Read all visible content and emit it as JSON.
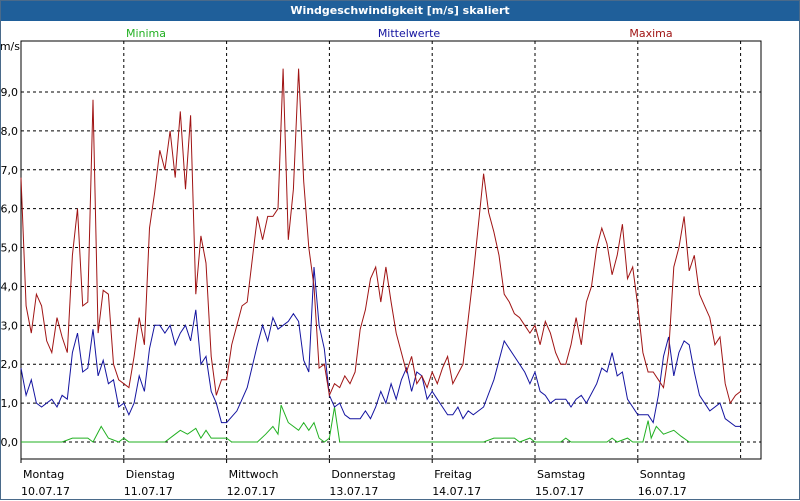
{
  "window": {
    "title": "Windgeschwindigkeit [m/s] skaliert"
  },
  "chart_data": {
    "type": "line",
    "title": "Windgeschwindigkeit [m/s] skaliert",
    "ylabel": "m/s",
    "ylim": [
      0,
      10
    ],
    "yticks": [
      "0,0",
      "1,0",
      "2,0",
      "3,0",
      "4,0",
      "5,0",
      "6,0",
      "7,0",
      "8,0",
      "9,0"
    ],
    "xlim": [
      0,
      7.2
    ],
    "days": [
      {
        "weekday": "Montag",
        "date": "10.07.17"
      },
      {
        "weekday": "Dienstag",
        "date": "11.07.17"
      },
      {
        "weekday": "Mittwoch",
        "date": "12.07.17"
      },
      {
        "weekday": "Donnerstag",
        "date": "13.07.17"
      },
      {
        "weekday": "Freitag",
        "date": "14.07.17"
      },
      {
        "weekday": "Samstag",
        "date": "15.07.17"
      },
      {
        "weekday": "Sonntag",
        "date": "16.07.17"
      }
    ],
    "series": [
      {
        "name": "Minima",
        "color": "#22b022",
        "points": [
          [
            0,
            0
          ],
          [
            0.4,
            0
          ],
          [
            0.5,
            0.1
          ],
          [
            0.65,
            0.1
          ],
          [
            0.7,
            0
          ],
          [
            0.78,
            0.4
          ],
          [
            0.85,
            0.1
          ],
          [
            0.95,
            0
          ],
          [
            1.0,
            0.1
          ],
          [
            1.05,
            0
          ],
          [
            1.4,
            0
          ],
          [
            1.5,
            0.2
          ],
          [
            1.55,
            0.3
          ],
          [
            1.62,
            0.2
          ],
          [
            1.7,
            0.35
          ],
          [
            1.75,
            0.1
          ],
          [
            1.8,
            0.3
          ],
          [
            1.85,
            0.1
          ],
          [
            2.0,
            0.1
          ],
          [
            2.05,
            0
          ],
          [
            2.3,
            0
          ],
          [
            2.38,
            0.2
          ],
          [
            2.45,
            0.4
          ],
          [
            2.5,
            0.2
          ],
          [
            2.53,
            0.95
          ],
          [
            2.6,
            0.5
          ],
          [
            2.7,
            0.3
          ],
          [
            2.75,
            0.5
          ],
          [
            2.8,
            0.3
          ],
          [
            2.85,
            0.5
          ],
          [
            2.9,
            0.1
          ],
          [
            2.95,
            0
          ],
          [
            3.0,
            0.1
          ],
          [
            3.05,
            0.9
          ],
          [
            3.1,
            0
          ],
          [
            4.5,
            0
          ],
          [
            4.6,
            0.1
          ],
          [
            4.8,
            0.1
          ],
          [
            4.85,
            0
          ],
          [
            4.95,
            0.1
          ],
          [
            5.0,
            0
          ],
          [
            5.25,
            0
          ],
          [
            5.3,
            0.1
          ],
          [
            5.35,
            0
          ],
          [
            5.7,
            0
          ],
          [
            5.75,
            0.1
          ],
          [
            5.8,
            0
          ],
          [
            5.9,
            0.1
          ],
          [
            5.95,
            0
          ],
          [
            6.05,
            0
          ],
          [
            6.1,
            0.55
          ],
          [
            6.13,
            0.1
          ],
          [
            6.18,
            0.4
          ],
          [
            6.25,
            0.2
          ],
          [
            6.35,
            0.3
          ],
          [
            6.42,
            0.15
          ],
          [
            6.5,
            0
          ],
          [
            7.0,
            0
          ]
        ]
      },
      {
        "name": "Mittelwerte",
        "color": "#1414a0",
        "points": [
          [
            0,
            1.9
          ],
          [
            0.05,
            1.2
          ],
          [
            0.1,
            1.6
          ],
          [
            0.15,
            1.0
          ],
          [
            0.2,
            0.9
          ],
          [
            0.3,
            1.1
          ],
          [
            0.35,
            0.9
          ],
          [
            0.4,
            1.2
          ],
          [
            0.45,
            1.1
          ],
          [
            0.5,
            2.3
          ],
          [
            0.55,
            2.8
          ],
          [
            0.6,
            1.8
          ],
          [
            0.65,
            1.9
          ],
          [
            0.7,
            2.9
          ],
          [
            0.75,
            1.7
          ],
          [
            0.8,
            2.1
          ],
          [
            0.85,
            1.5
          ],
          [
            0.9,
            1.6
          ],
          [
            0.95,
            0.9
          ],
          [
            1.0,
            1.0
          ],
          [
            1.05,
            0.7
          ],
          [
            1.1,
            1.0
          ],
          [
            1.15,
            1.7
          ],
          [
            1.2,
            1.3
          ],
          [
            1.25,
            2.4
          ],
          [
            1.3,
            3.0
          ],
          [
            1.35,
            3.0
          ],
          [
            1.4,
            2.8
          ],
          [
            1.45,
            3.0
          ],
          [
            1.5,
            2.5
          ],
          [
            1.55,
            2.8
          ],
          [
            1.6,
            3.0
          ],
          [
            1.65,
            2.6
          ],
          [
            1.7,
            3.4
          ],
          [
            1.75,
            2.0
          ],
          [
            1.8,
            2.2
          ],
          [
            1.85,
            1.3
          ],
          [
            1.9,
            1.0
          ],
          [
            1.95,
            0.5
          ],
          [
            2.0,
            0.5
          ],
          [
            2.1,
            0.8
          ],
          [
            2.2,
            1.4
          ],
          [
            2.3,
            2.5
          ],
          [
            2.35,
            3.0
          ],
          [
            2.4,
            2.6
          ],
          [
            2.45,
            3.2
          ],
          [
            2.5,
            2.9
          ],
          [
            2.55,
            3.0
          ],
          [
            2.6,
            3.1
          ],
          [
            2.65,
            3.3
          ],
          [
            2.7,
            3.1
          ],
          [
            2.75,
            2.1
          ],
          [
            2.8,
            1.8
          ],
          [
            2.85,
            4.5
          ],
          [
            2.9,
            3.0
          ],
          [
            2.95,
            2.4
          ],
          [
            3.0,
            1.2
          ],
          [
            3.05,
            0.9
          ],
          [
            3.1,
            1.0
          ],
          [
            3.15,
            0.7
          ],
          [
            3.2,
            0.6
          ],
          [
            3.3,
            0.6
          ],
          [
            3.35,
            0.8
          ],
          [
            3.4,
            0.6
          ],
          [
            3.45,
            0.9
          ],
          [
            3.5,
            1.3
          ],
          [
            3.55,
            1.0
          ],
          [
            3.6,
            1.5
          ],
          [
            3.65,
            1.1
          ],
          [
            3.7,
            1.6
          ],
          [
            3.75,
            1.9
          ],
          [
            3.8,
            1.3
          ],
          [
            3.85,
            1.8
          ],
          [
            3.9,
            1.7
          ],
          [
            3.95,
            1.1
          ],
          [
            4.0,
            1.3
          ],
          [
            4.05,
            1.1
          ],
          [
            4.1,
            0.9
          ],
          [
            4.15,
            0.7
          ],
          [
            4.2,
            0.7
          ],
          [
            4.25,
            0.9
          ],
          [
            4.3,
            0.6
          ],
          [
            4.35,
            0.8
          ],
          [
            4.4,
            0.7
          ],
          [
            4.5,
            0.9
          ],
          [
            4.6,
            1.6
          ],
          [
            4.7,
            2.6
          ],
          [
            4.8,
            2.2
          ],
          [
            4.9,
            1.8
          ],
          [
            4.95,
            1.5
          ],
          [
            5.0,
            1.8
          ],
          [
            5.05,
            1.3
          ],
          [
            5.1,
            1.2
          ],
          [
            5.15,
            1.0
          ],
          [
            5.2,
            1.1
          ],
          [
            5.3,
            1.1
          ],
          [
            5.35,
            0.9
          ],
          [
            5.4,
            1.1
          ],
          [
            5.45,
            1.2
          ],
          [
            5.5,
            1.0
          ],
          [
            5.6,
            1.5
          ],
          [
            5.65,
            1.9
          ],
          [
            5.7,
            1.8
          ],
          [
            5.75,
            2.3
          ],
          [
            5.8,
            1.7
          ],
          [
            5.85,
            1.8
          ],
          [
            5.9,
            1.1
          ],
          [
            5.95,
            0.9
          ],
          [
            6.0,
            0.7
          ],
          [
            6.1,
            0.7
          ],
          [
            6.15,
            0.5
          ],
          [
            6.2,
            1.2
          ],
          [
            6.25,
            2.2
          ],
          [
            6.3,
            2.7
          ],
          [
            6.35,
            1.7
          ],
          [
            6.4,
            2.3
          ],
          [
            6.45,
            2.6
          ],
          [
            6.5,
            2.5
          ],
          [
            6.55,
            1.8
          ],
          [
            6.6,
            1.2
          ],
          [
            6.7,
            0.8
          ],
          [
            6.8,
            1.0
          ],
          [
            6.85,
            0.6
          ],
          [
            6.95,
            0.4
          ],
          [
            7.0,
            0.4
          ]
        ]
      },
      {
        "name": "Maxima",
        "color": "#a01414",
        "points": [
          [
            0,
            6.8
          ],
          [
            0.05,
            3.5
          ],
          [
            0.1,
            2.8
          ],
          [
            0.15,
            3.8
          ],
          [
            0.2,
            3.5
          ],
          [
            0.25,
            2.6
          ],
          [
            0.3,
            2.3
          ],
          [
            0.35,
            3.2
          ],
          [
            0.4,
            2.7
          ],
          [
            0.45,
            2.3
          ],
          [
            0.5,
            4.8
          ],
          [
            0.55,
            6.0
          ],
          [
            0.6,
            3.5
          ],
          [
            0.65,
            3.6
          ],
          [
            0.7,
            8.8
          ],
          [
            0.75,
            2.8
          ],
          [
            0.8,
            3.9
          ],
          [
            0.85,
            3.8
          ],
          [
            0.9,
            2.0
          ],
          [
            0.95,
            1.6
          ],
          [
            1.0,
            1.5
          ],
          [
            1.05,
            1.4
          ],
          [
            1.1,
            2.2
          ],
          [
            1.15,
            3.2
          ],
          [
            1.2,
            2.5
          ],
          [
            1.25,
            5.5
          ],
          [
            1.3,
            6.4
          ],
          [
            1.35,
            7.5
          ],
          [
            1.4,
            7.0
          ],
          [
            1.45,
            8.0
          ],
          [
            1.5,
            6.8
          ],
          [
            1.55,
            8.5
          ],
          [
            1.6,
            6.5
          ],
          [
            1.65,
            8.4
          ],
          [
            1.7,
            3.8
          ],
          [
            1.75,
            5.3
          ],
          [
            1.8,
            4.6
          ],
          [
            1.85,
            2.2
          ],
          [
            1.9,
            1.2
          ],
          [
            1.95,
            1.6
          ],
          [
            2.0,
            1.6
          ],
          [
            2.05,
            2.5
          ],
          [
            2.1,
            3.0
          ],
          [
            2.15,
            3.5
          ],
          [
            2.2,
            3.6
          ],
          [
            2.3,
            5.8
          ],
          [
            2.35,
            5.2
          ],
          [
            2.4,
            5.8
          ],
          [
            2.45,
            5.8
          ],
          [
            2.5,
            6.0
          ],
          [
            2.55,
            9.6
          ],
          [
            2.6,
            5.2
          ],
          [
            2.65,
            6.5
          ],
          [
            2.7,
            9.6
          ],
          [
            2.75,
            6.7
          ],
          [
            2.8,
            5.0
          ],
          [
            2.85,
            4.0
          ],
          [
            2.9,
            1.9
          ],
          [
            2.95,
            2.0
          ],
          [
            3.0,
            1.2
          ],
          [
            3.05,
            1.5
          ],
          [
            3.1,
            1.4
          ],
          [
            3.15,
            1.7
          ],
          [
            3.2,
            1.5
          ],
          [
            3.25,
            1.8
          ],
          [
            3.3,
            2.9
          ],
          [
            3.35,
            3.4
          ],
          [
            3.4,
            4.2
          ],
          [
            3.45,
            4.5
          ],
          [
            3.5,
            3.6
          ],
          [
            3.55,
            4.5
          ],
          [
            3.6,
            3.6
          ],
          [
            3.65,
            2.8
          ],
          [
            3.7,
            2.3
          ],
          [
            3.75,
            1.8
          ],
          [
            3.8,
            2.2
          ],
          [
            3.85,
            1.5
          ],
          [
            3.9,
            1.7
          ],
          [
            3.95,
            1.4
          ],
          [
            4.0,
            1.8
          ],
          [
            4.05,
            1.5
          ],
          [
            4.1,
            1.9
          ],
          [
            4.15,
            2.2
          ],
          [
            4.2,
            1.5
          ],
          [
            4.3,
            2.0
          ],
          [
            4.4,
            4.3
          ],
          [
            4.5,
            6.9
          ],
          [
            4.55,
            5.9
          ],
          [
            4.6,
            5.4
          ],
          [
            4.65,
            4.8
          ],
          [
            4.7,
            3.8
          ],
          [
            4.75,
            3.6
          ],
          [
            4.8,
            3.3
          ],
          [
            4.85,
            3.2
          ],
          [
            4.9,
            3.0
          ],
          [
            4.95,
            2.8
          ],
          [
            5.0,
            3.0
          ],
          [
            5.05,
            2.5
          ],
          [
            5.1,
            3.1
          ],
          [
            5.15,
            2.8
          ],
          [
            5.2,
            2.3
          ],
          [
            5.25,
            2.0
          ],
          [
            5.3,
            2.0
          ],
          [
            5.35,
            2.5
          ],
          [
            5.4,
            3.2
          ],
          [
            5.45,
            2.5
          ],
          [
            5.5,
            3.6
          ],
          [
            5.55,
            4.0
          ],
          [
            5.6,
            5.0
          ],
          [
            5.65,
            5.5
          ],
          [
            5.7,
            5.1
          ],
          [
            5.75,
            4.3
          ],
          [
            5.8,
            4.8
          ],
          [
            5.85,
            5.6
          ],
          [
            5.9,
            4.2
          ],
          [
            5.95,
            4.5
          ],
          [
            6.0,
            3.5
          ],
          [
            6.05,
            2.3
          ],
          [
            6.1,
            1.8
          ],
          [
            6.15,
            1.8
          ],
          [
            6.2,
            1.6
          ],
          [
            6.25,
            1.4
          ],
          [
            6.3,
            2.3
          ],
          [
            6.35,
            4.5
          ],
          [
            6.4,
            5.0
          ],
          [
            6.45,
            5.8
          ],
          [
            6.5,
            4.4
          ],
          [
            6.55,
            4.8
          ],
          [
            6.6,
            3.8
          ],
          [
            6.65,
            3.5
          ],
          [
            6.7,
            3.2
          ],
          [
            6.75,
            2.5
          ],
          [
            6.8,
            2.7
          ],
          [
            6.85,
            1.5
          ],
          [
            6.9,
            1.0
          ],
          [
            6.95,
            1.2
          ],
          [
            7.0,
            1.3
          ]
        ]
      }
    ]
  }
}
